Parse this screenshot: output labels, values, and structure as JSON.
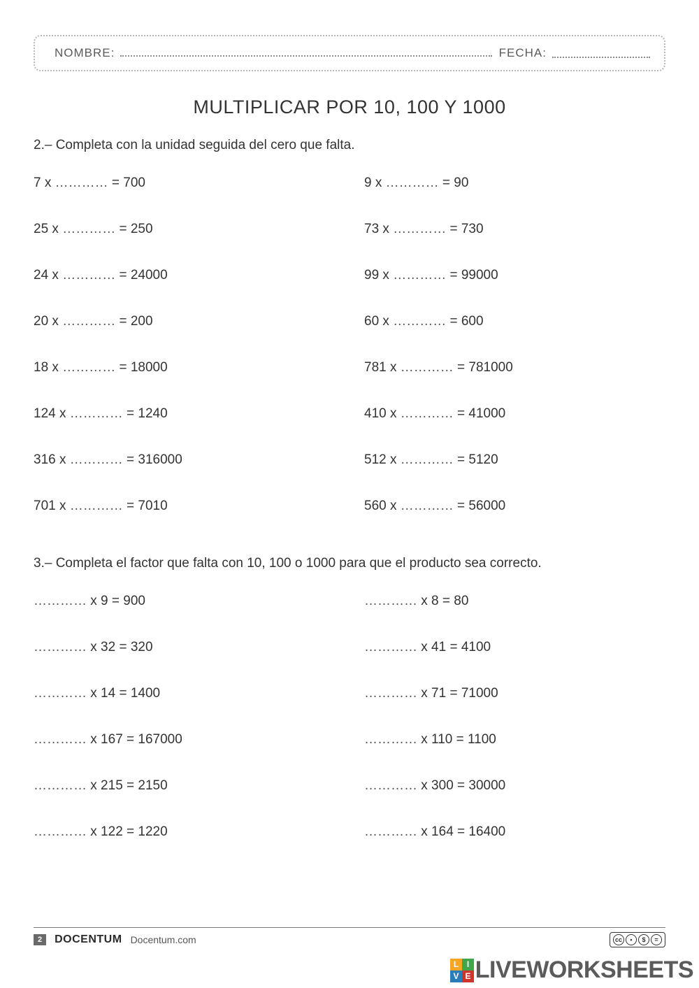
{
  "header": {
    "name_label": "NOMBRE:",
    "date_label": "FECHA:"
  },
  "title": "MULTIPLICAR POR 10, 100 Y 1000",
  "blank": "…………",
  "section2": {
    "instruction": "2.– Completa con la unidad seguida del cero que falta.",
    "rows": [
      {
        "l_a": "7",
        "l_r": "700",
        "r_a": "9",
        "r_r": "90"
      },
      {
        "l_a": "25",
        "l_r": "250",
        "r_a": "73",
        "r_r": "730"
      },
      {
        "l_a": "24",
        "l_r": "24000",
        "r_a": "99",
        "r_r": "99000"
      },
      {
        "l_a": "20",
        "l_r": "200",
        "r_a": "60",
        "r_r": "600"
      },
      {
        "l_a": "18",
        "l_r": "18000",
        "r_a": "781",
        "r_r": "781000"
      },
      {
        "l_a": "124",
        "l_r": "1240",
        "r_a": "410",
        "r_r": "41000"
      },
      {
        "l_a": "316",
        "l_r": "316000",
        "r_a": "512",
        "r_r": "5120"
      },
      {
        "l_a": "701",
        "l_r": "7010",
        "r_a": "560",
        "r_r": "56000"
      }
    ]
  },
  "section3": {
    "instruction": "3.– Completa el factor que falta con 10, 100 o 1000 para que el producto sea correcto.",
    "rows": [
      {
        "l_b": "9",
        "l_r": "900",
        "r_b": "8",
        "r_r": "80"
      },
      {
        "l_b": "32",
        "l_r": "320",
        "r_b": "41",
        "r_r": "4100"
      },
      {
        "l_b": "14",
        "l_r": "1400",
        "r_b": "71",
        "r_r": "71000"
      },
      {
        "l_b": "167",
        "l_r": "167000",
        "r_b": "110",
        "r_r": "1100"
      },
      {
        "l_b": "215",
        "l_r": "2150",
        "r_b": "300",
        "r_r": "30000"
      },
      {
        "l_b": "122",
        "l_r": "1220",
        "r_b": "164",
        "r_r": "16400"
      }
    ]
  },
  "footer": {
    "page_number": "2",
    "brand": "DOCENTUM",
    "url": "Docentum.com",
    "cc": [
      "cc",
      "①",
      "$",
      "="
    ]
  },
  "watermark": {
    "badge": [
      "L",
      "I",
      "V",
      "E"
    ],
    "text": "LIVEWORKSHEETS"
  }
}
